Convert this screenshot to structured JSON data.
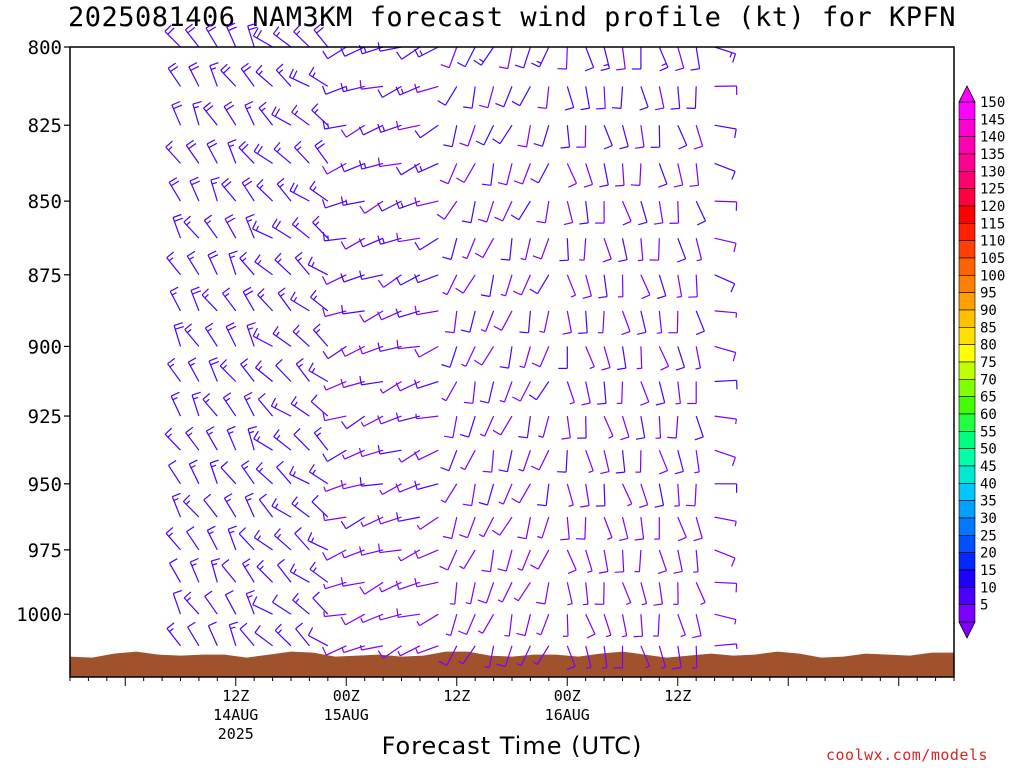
{
  "page": {
    "title": "2025081406 NAM3KM forecast wind profile (kt) for KPFN",
    "xlabel": "Forecast Time (UTC)",
    "credit": "coolwx.com/models"
  },
  "chart_data": {
    "type": "wind-barb-timeheight",
    "title": "2025081406 NAM3KM forecast wind profile (kt) for KPFN",
    "xlabel": "Forecast Time (UTC)",
    "ylabel": "",
    "y_scale": "log-pressure",
    "y_inverted": true,
    "ylim": [
      800,
      1025
    ],
    "y_ticks": [
      800,
      825,
      850,
      875,
      900,
      925,
      950,
      975,
      1000
    ],
    "x_hour_range": [
      -6,
      90
    ],
    "x_ticks": [
      {
        "hour": 12,
        "lines": [
          "12Z",
          "14AUG",
          "2025"
        ]
      },
      {
        "hour": 24,
        "lines": [
          "00Z",
          "15AUG"
        ]
      },
      {
        "hour": 36,
        "lines": [
          "12Z"
        ]
      },
      {
        "hour": 48,
        "lines": [
          "00Z",
          "16AUG"
        ]
      },
      {
        "hour": 60,
        "lines": [
          "12Z"
        ]
      }
    ],
    "levels_hpa": [
      800,
      812.5,
      825,
      837.5,
      850,
      862.5,
      875,
      887.5,
      900,
      912.5,
      925,
      937.5,
      950,
      962.5,
      975,
      987.5,
      1000,
      1012.5
    ],
    "time_step_hours": 2,
    "time_start_hour": 6,
    "time_count": 30,
    "wind_regimes": [
      {
        "hours": [
          6,
          15
        ],
        "direction_deg": 330,
        "speed_kt": [
          10,
          25
        ]
      },
      {
        "hours": [
          16,
          23
        ],
        "direction_deg": 310,
        "speed_kt": [
          10,
          20
        ]
      },
      {
        "hours": [
          24,
          35
        ],
        "direction_deg": 250,
        "speed_kt": [
          5,
          15
        ]
      },
      {
        "hours": [
          36,
          47
        ],
        "direction_deg": 200,
        "speed_kt": [
          5,
          12
        ]
      },
      {
        "hours": [
          48,
          62
        ],
        "direction_deg": 170,
        "speed_kt": [
          5,
          12
        ]
      },
      {
        "hours": [
          62,
          64
        ],
        "direction_deg": 100,
        "speed_kt": [
          5,
          12
        ]
      }
    ],
    "terrain_surface_hpa": 1016,
    "terrain_color": "#a0522d",
    "barb_colors": {
      "low": "#4b00ff",
      "mid": "#7d00ff"
    },
    "colorbar": {
      "values": [
        5,
        10,
        15,
        20,
        25,
        30,
        35,
        40,
        45,
        50,
        55,
        60,
        65,
        70,
        75,
        80,
        85,
        90,
        95,
        100,
        105,
        110,
        115,
        120,
        125,
        130,
        135,
        140,
        145,
        150
      ],
      "colors": [
        "#7f00ff",
        "#4b00ff",
        "#1e00ff",
        "#0028ff",
        "#0050ff",
        "#0078ff",
        "#00a0ff",
        "#00c8ff",
        "#00e8d0",
        "#00ffaa",
        "#00ff80",
        "#20ff40",
        "#40ff00",
        "#80ff00",
        "#c0ff00",
        "#ffff00",
        "#ffe000",
        "#ffc000",
        "#ffa000",
        "#ff8000",
        "#ff6000",
        "#ff4000",
        "#ff2000",
        "#ff0000",
        "#ff0040",
        "#ff0070",
        "#ff0090",
        "#ff00b0",
        "#ff00d0",
        "#ff00ff"
      ]
    }
  }
}
